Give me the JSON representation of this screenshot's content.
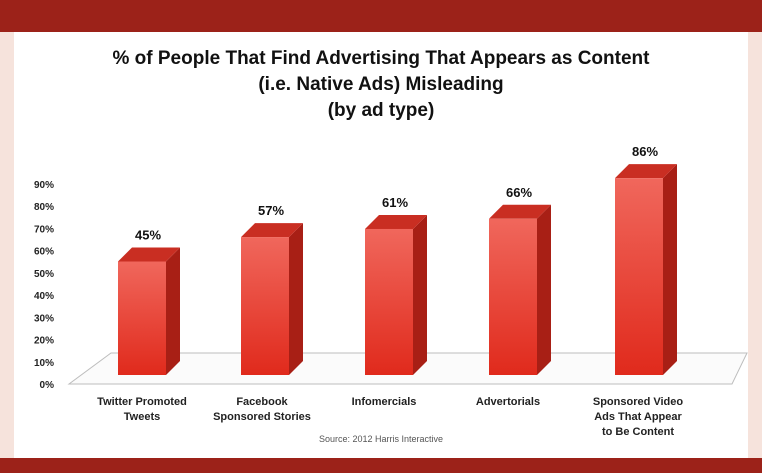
{
  "chart_data": {
    "type": "bar",
    "title": [
      "% of People That Find Advertising That Appears as Content",
      "(i.e. Native Ads) Misleading",
      "(by ad type)"
    ],
    "categories": [
      [
        "Twitter Promoted",
        "Tweets"
      ],
      [
        "Facebook",
        "Sponsored Stories"
      ],
      [
        "Infomercials"
      ],
      [
        "Advertorials"
      ],
      [
        "Sponsored Video",
        "Ads That Appear",
        "to Be Content"
      ]
    ],
    "values": [
      45,
      57,
      61,
      66,
      86
    ],
    "value_labels": [
      "45%",
      "57%",
      "61%",
      "66%",
      "86%"
    ],
    "yticks": [
      0,
      10,
      20,
      30,
      40,
      50,
      60,
      70,
      80,
      90
    ],
    "ytick_labels": [
      "0%",
      "10%",
      "20%",
      "30%",
      "40%",
      "50%",
      "60%",
      "70%",
      "80%",
      "90%"
    ],
    "ylim": [
      0,
      90
    ],
    "grid": false,
    "legend": "none",
    "style": "3d-bar",
    "colors": {
      "bar_front": "#e8392c",
      "bar_side": "#a81f15",
      "bar_top": "#c92e22"
    }
  },
  "source": "Source: 2012 Harris Interactive"
}
